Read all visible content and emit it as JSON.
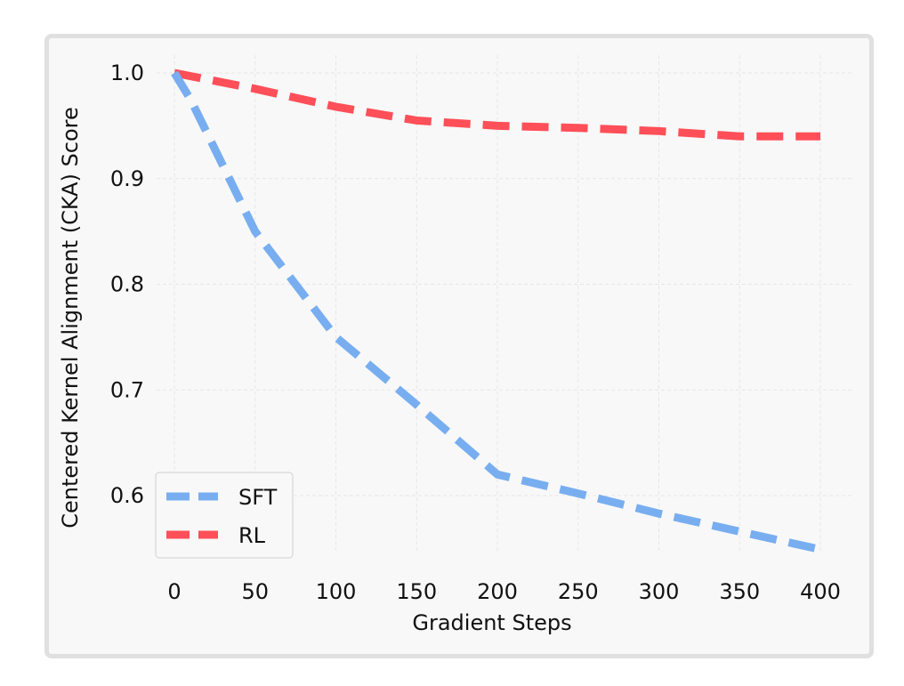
{
  "chart_data": {
    "type": "line",
    "title": "",
    "xlabel": "Gradient Steps",
    "ylabel": "Centered Kernel Alignment (CKA) Score",
    "xlim": [
      -20,
      420
    ],
    "ylim": [
      0.53,
      1.02
    ],
    "xticks": [
      0,
      50,
      100,
      150,
      200,
      250,
      300,
      350,
      400
    ],
    "yticks": [
      0.6,
      0.7,
      0.8,
      0.9,
      1.0
    ],
    "ytick_labels": [
      "0.6",
      "0.7",
      "0.8",
      "0.9",
      "1.0"
    ],
    "grid": true,
    "legend_position": "bottom-left",
    "series": [
      {
        "name": "SFT",
        "color": "#78aef0",
        "x": [
          0,
          10,
          50,
          100,
          150,
          200,
          250,
          300,
          350,
          400
        ],
        "y": [
          1.0,
          0.975,
          0.85,
          0.75,
          0.686,
          0.62,
          0.602,
          0.583,
          0.566,
          0.549
        ]
      },
      {
        "name": "RL",
        "color": "#ff4f58",
        "x": [
          0,
          50,
          100,
          150,
          200,
          250,
          300,
          350,
          400
        ],
        "y": [
          1.0,
          0.985,
          0.968,
          0.955,
          0.95,
          0.948,
          0.945,
          0.94,
          0.94
        ]
      }
    ]
  }
}
